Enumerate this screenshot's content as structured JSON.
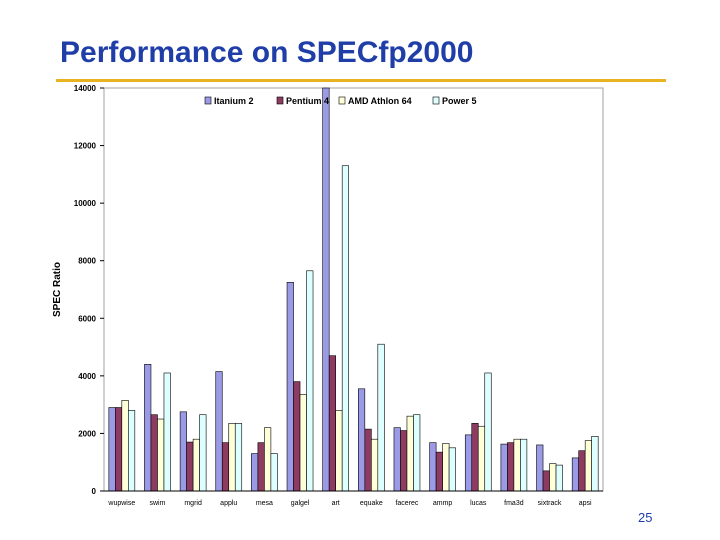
{
  "slide": {
    "title": "Performance on SPECfp2000",
    "page_number": "25"
  },
  "colors": {
    "title": "#1f3ea8",
    "rule": "#e8b323"
  },
  "chart_data": {
    "type": "bar",
    "title": "",
    "xlabel": "",
    "ylabel": "SPEC Ratio",
    "ylim": [
      0,
      14000
    ],
    "yticks": [
      0,
      2000,
      4000,
      6000,
      8000,
      10000,
      12000,
      14000
    ],
    "grid": false,
    "legend_position": "top-center",
    "categories": [
      "wupwise",
      "swim",
      "mgrid",
      "applu",
      "mesa",
      "galgel",
      "art",
      "equake",
      "facerec",
      "ammp",
      "lucas",
      "fma3d",
      "sixtrack",
      "apsi"
    ],
    "series": [
      {
        "name": "Itanium 2",
        "color": "#9a9ae6",
        "values": [
          2900,
          4400,
          2750,
          4150,
          1300,
          7250,
          14000,
          3550,
          2200,
          1680,
          1950,
          1630,
          1600,
          1150
        ]
      },
      {
        "name": "Pentium 4",
        "color": "#8e3b62",
        "values": [
          2900,
          2650,
          1700,
          1680,
          1680,
          3800,
          4700,
          2150,
          2100,
          1350,
          2350,
          1680,
          700,
          1400
        ]
      },
      {
        "name": "AMD Athlon 64",
        "color": "#ffffd8",
        "values": [
          3150,
          2500,
          1800,
          2350,
          2200,
          3350,
          2800,
          1800,
          2600,
          1650,
          2250,
          1800,
          950,
          1750
        ]
      },
      {
        "name": "Power 5",
        "color": "#ddffff",
        "values": [
          2800,
          4100,
          2650,
          2350,
          1300,
          7650,
          11300,
          5100,
          2650,
          1500,
          4100,
          1800,
          900,
          1900
        ]
      }
    ]
  }
}
